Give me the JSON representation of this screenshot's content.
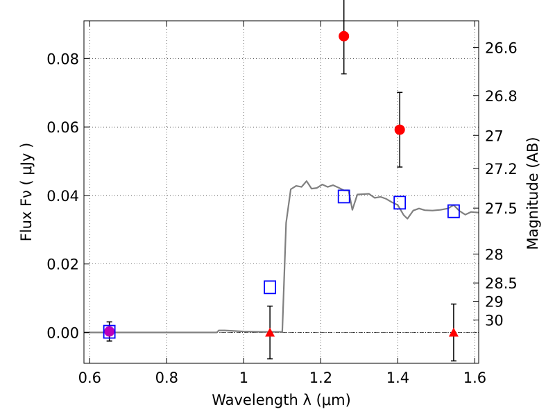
{
  "chart_data": {
    "type": "scatter",
    "xlabel": "Wavelength  λ (μm)",
    "ylabel_left": "Flux  Fν  ( μJy )",
    "ylabel_right": "Magnitude (AB)",
    "xlim": [
      0.585,
      1.61
    ],
    "ylim": [
      -0.009,
      0.091
    ],
    "grid": true,
    "x_ticks": [
      {
        "value": 0.6,
        "label": "0.6"
      },
      {
        "value": 0.8,
        "label": "0.8"
      },
      {
        "value": 1.0,
        "label": "1"
      },
      {
        "value": 1.2,
        "label": "1.2"
      },
      {
        "value": 1.4,
        "label": "1.4"
      },
      {
        "value": 1.6,
        "label": "1.6"
      }
    ],
    "y_ticks": [
      {
        "value": 0.0,
        "label": "0.00"
      },
      {
        "value": 0.02,
        "label": "0.02"
      },
      {
        "value": 0.04,
        "label": "0.04"
      },
      {
        "value": 0.06,
        "label": "0.06"
      },
      {
        "value": 0.08,
        "label": "0.08"
      }
    ],
    "mag_ticks": [
      {
        "value": 26.6,
        "label": "26.6"
      },
      {
        "value": 26.8,
        "label": "26.8"
      },
      {
        "value": 27.0,
        "label": "27"
      },
      {
        "value": 27.2,
        "label": "27.2"
      },
      {
        "value": 27.5,
        "label": "27.5"
      },
      {
        "value": 28.0,
        "label": "28"
      },
      {
        "value": 28.5,
        "label": "28.5"
      },
      {
        "value": 29.0,
        "label": "29"
      },
      {
        "value": 30.0,
        "label": "30"
      }
    ],
    "mag_zeropoint_uJy": 3631000000,
    "colors": {
      "detection": "#ff0000",
      "upper_limit": "#ff0000",
      "optical_point": "#bb00bb",
      "model_box": "#0000ff",
      "model_sed": "#808080",
      "errorbar": "#000000"
    },
    "series": [
      {
        "role": "detection",
        "marker": "circle",
        "points": [
          {
            "x": 0.651,
            "y": 0.0003,
            "err": 0.0028
          },
          {
            "x": 1.26,
            "y": 0.0865,
            "err": 0.011
          },
          {
            "x": 1.405,
            "y": 0.0592,
            "err": 0.0109
          }
        ]
      },
      {
        "role": "upper_limit",
        "marker": "triangle",
        "points": [
          {
            "x": 1.068,
            "y": 0.0,
            "err": 0.0077
          },
          {
            "x": 1.545,
            "y": 0.0,
            "err": 0.0083
          }
        ]
      },
      {
        "role": "model_box",
        "marker": "square",
        "points": [
          {
            "x": 0.651,
            "y": 0.0002
          },
          {
            "x": 1.068,
            "y": 0.0132
          },
          {
            "x": 1.26,
            "y": 0.0397
          },
          {
            "x": 1.405,
            "y": 0.0379
          },
          {
            "x": 1.545,
            "y": 0.0354
          }
        ]
      },
      {
        "role": "model_sed",
        "marker": "line",
        "x": [
          0.585,
          0.7,
          0.8,
          0.9,
          0.93,
          0.935,
          0.95,
          1.0,
          1.05,
          1.095,
          1.1,
          1.11,
          1.122,
          1.136,
          1.15,
          1.163,
          1.176,
          1.19,
          1.204,
          1.218,
          1.232,
          1.246,
          1.26,
          1.272,
          1.282,
          1.295,
          1.31,
          1.325,
          1.34,
          1.355,
          1.37,
          1.385,
          1.4,
          1.415,
          1.425,
          1.44,
          1.455,
          1.47,
          1.49,
          1.51,
          1.53,
          1.545,
          1.56,
          1.575,
          1.59,
          1.61
        ],
        "y": [
          0.0,
          0.0,
          0.0,
          0.0,
          0.0,
          0.0006,
          0.0006,
          0.0003,
          0.0002,
          0.0002,
          0.0002,
          0.032,
          0.0418,
          0.0428,
          0.0425,
          0.0442,
          0.042,
          0.0422,
          0.0432,
          0.0425,
          0.043,
          0.0423,
          0.0415,
          0.0415,
          0.0358,
          0.0403,
          0.0404,
          0.0405,
          0.0393,
          0.0396,
          0.039,
          0.038,
          0.0372,
          0.0343,
          0.0332,
          0.0356,
          0.0362,
          0.0357,
          0.0356,
          0.0358,
          0.0362,
          0.0372,
          0.0355,
          0.0344,
          0.0352,
          0.035
        ]
      }
    ]
  }
}
